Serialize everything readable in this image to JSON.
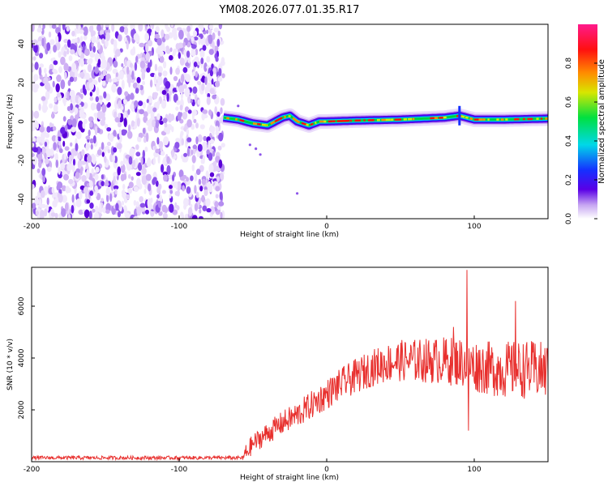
{
  "title": "YM08.2026.077.01.35.R17",
  "chart_data": [
    {
      "type": "heatmap",
      "xlabel": "Height of straight line (km)",
      "ylabel": "Frequency (Hz)",
      "xlim": [
        -200,
        150
      ],
      "ylim": [
        -50,
        50
      ],
      "xticks": [
        -200,
        -100,
        0,
        100
      ],
      "xtick_labels": [
        "-200",
        "-100",
        "0",
        "100"
      ],
      "yticks": [
        -40,
        -20,
        0,
        20,
        40
      ],
      "ytick_labels": [
        "-40",
        "-20",
        "0",
        "20",
        "40"
      ],
      "noise_region_x": [
        -200,
        -70
      ],
      "signal_onset_x": -70,
      "signal_track": [
        [
          -70,
          2
        ],
        [
          -60,
          1
        ],
        [
          -50,
          -1
        ],
        [
          -40,
          -2
        ],
        [
          -30,
          2
        ],
        [
          -25,
          3
        ],
        [
          -20,
          0
        ],
        [
          -12,
          -2
        ],
        [
          -5,
          0
        ],
        [
          0,
          0
        ],
        [
          20,
          0.5
        ],
        [
          50,
          1
        ],
        [
          80,
          2
        ],
        [
          90,
          3
        ],
        [
          100,
          1
        ],
        [
          120,
          1
        ],
        [
          150,
          1.5
        ]
      ],
      "colorbar": {
        "label": "Normalized spectral amplitude",
        "range": [
          0,
          1
        ],
        "ticks": [
          0.0,
          0.2,
          0.4,
          0.6,
          0.8
        ],
        "tick_labels": [
          "0.0",
          "0.2",
          "0.4",
          "0.6",
          "0.8"
        ]
      }
    },
    {
      "type": "line",
      "xlabel": "Height of straight line (km)",
      "ylabel": "SNR (10 * v/v)",
      "xlim": [
        -200,
        150
      ],
      "ylim": [
        0,
        7500
      ],
      "xticks": [
        -200,
        -100,
        0,
        100
      ],
      "xtick_labels": [
        "-200",
        "-100",
        "0",
        "100"
      ],
      "yticks": [
        2000,
        4000,
        6000
      ],
      "ytick_labels": [
        "2000",
        "4000",
        "6000"
      ],
      "color": "#e8302e",
      "series": [
        {
          "name": "SNR",
          "envelope_x": [
            -200,
            -150,
            -100,
            -70,
            -57,
            -50,
            -40,
            -30,
            -20,
            -10,
            0,
            10,
            20,
            30,
            40,
            50,
            60,
            70,
            80,
            90,
            95,
            100,
            110,
            120,
            130,
            140,
            150
          ],
          "envelope_y": [
            150,
            150,
            150,
            150,
            150,
            700,
            1100,
            1500,
            1800,
            2200,
            2600,
            3000,
            3300,
            3600,
            3800,
            3900,
            3900,
            3900,
            3900,
            3850,
            3800,
            3700,
            3600,
            3550,
            3550,
            3550,
            3500
          ],
          "spikes": [
            {
              "x": 95,
              "y": 7400
            },
            {
              "x": 96,
              "y": 1200
            },
            {
              "x": 128,
              "y": 6200
            },
            {
              "x": 86,
              "y": 5200
            }
          ]
        }
      ]
    }
  ]
}
